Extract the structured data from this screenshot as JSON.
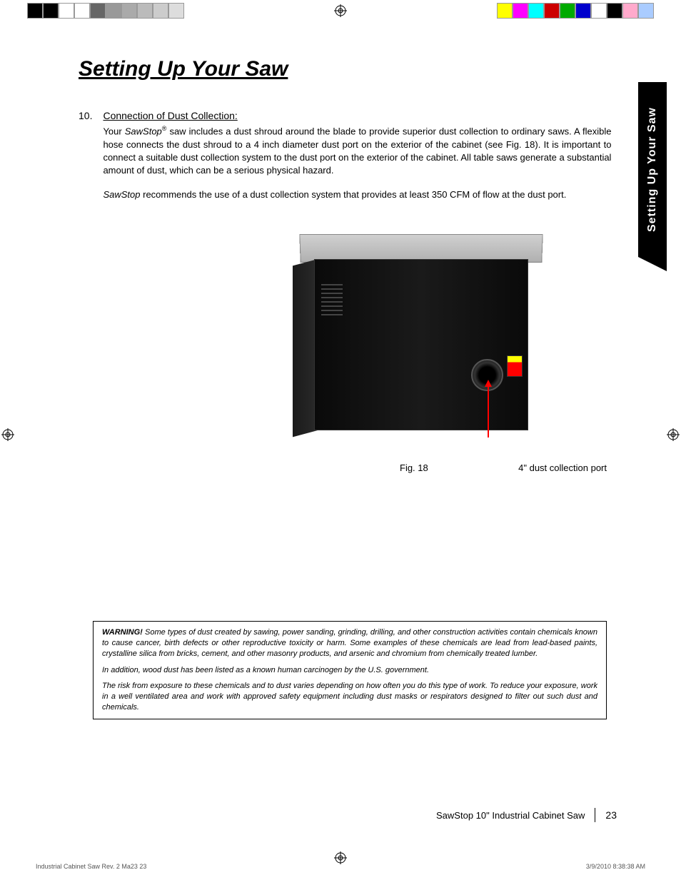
{
  "colorBarsLeft": [
    "#000000",
    "#000000",
    "#ffffff",
    "#ffffff",
    "#666666",
    "#999999",
    "#aaaaaa",
    "#bbbbbb",
    "#cccccc",
    "#dddddd"
  ],
  "colorBarsRight": [
    "#ffff00",
    "#ff00ff",
    "#00ffff",
    "#cc0000",
    "#00aa00",
    "#0000cc",
    "#ffffff",
    "#000000",
    "#ffaacc",
    "#aaccff"
  ],
  "title": "Setting Up Your Saw",
  "sideTab": "Setting Up Your Saw",
  "section": {
    "number": "10.",
    "heading": "Connection of Dust Collection:",
    "para1_pre": "Your ",
    "para1_brand": "SawStop",
    "para1_reg": "®",
    "para1_post": " saw includes a dust shroud around the blade to provide superior dust collection to ordinary saws. A flexible hose connects the dust shroud to a 4 inch diameter dust port on the exterior of the cabinet (see Fig. 18). It is important to connect a suitable dust collection system to the dust port on the exterior of the cabinet. All table saws generate a substantial amount of dust, which can be a serious physical hazard.",
    "para2_brand": "SawStop",
    "para2_post": " recommends the use of a dust collection system that provides at least 350 CFM of flow at the dust port."
  },
  "figure": {
    "caption": "Fig. 18",
    "label": "4\" dust collection port"
  },
  "warning": {
    "heading": "WARNING!",
    "p1": " Some types of dust created by sawing, power sanding, grinding, drilling, and other construction activities contain chemicals known to cause cancer, birth defects or other reproductive toxicity or harm. Some examples of these chemicals are lead from lead-based paints, crystalline silica from bricks, cement, and other masonry products, and arsenic and chromium from chemically treated lumber.",
    "p2": "In addition, wood dust has been listed as a known human carcinogen by the U.S. government.",
    "p3": "The risk from exposure to these chemicals and to dust varies depending on how often you do this type of work. To reduce your exposure, work in a well ventilated area and work with approved safety equipment including dust masks or respirators designed to filter out such dust and chemicals."
  },
  "footer": {
    "product": "SawStop 10\" Industrial Cabinet Saw",
    "page": "23"
  },
  "printFooter": {
    "left": "Industrial Cabinet Saw Rev. 2 Ma23   23",
    "right": "3/9/2010   8:38:38 AM"
  }
}
